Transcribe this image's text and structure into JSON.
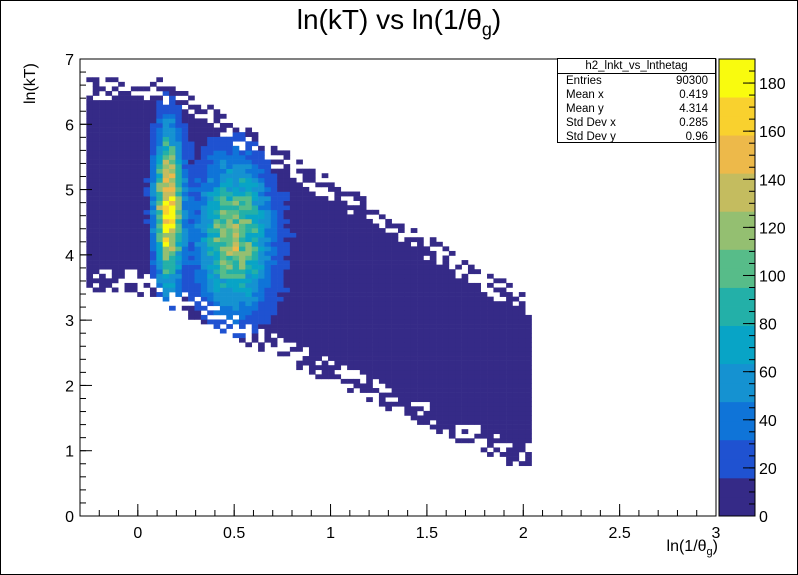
{
  "chart_data": {
    "type": "heatmap",
    "title": "ln(kT) vs ln(1/θ",
    "title_sub": "g",
    "title_end": ")",
    "xlabel": "ln(1/θ",
    "xlabel_sub": "g",
    "xlabel_end": ")",
    "ylabel": "ln(kT)",
    "xlim": [
      -0.3,
      3.0
    ],
    "ylim": [
      0,
      7
    ],
    "x_ticks": [
      0,
      0.5,
      1,
      1.5,
      2,
      2.5,
      3
    ],
    "x_tick_labels": [
      "0",
      "0.5",
      "1",
      "1.5",
      "2",
      "2.5",
      "3"
    ],
    "y_ticks": [
      0,
      1,
      2,
      3,
      4,
      5,
      6,
      7
    ],
    "y_tick_labels": [
      "0",
      "1",
      "2",
      "3",
      "4",
      "5",
      "6",
      "7"
    ],
    "z_range": [
      0,
      190
    ],
    "z_ticks": [
      0,
      20,
      40,
      60,
      80,
      100,
      120,
      140,
      160,
      180
    ],
    "z_tick_labels": [
      "0",
      "20",
      "40",
      "60",
      "80",
      "100",
      "120",
      "140",
      "160",
      "180"
    ],
    "colormap": [
      "#352a87",
      "#1f52d1",
      "#0f74d8",
      "#1592d1",
      "#08a4c6",
      "#23b0a8",
      "#57bc89",
      "#94bf71",
      "#c4bc5f",
      "#edb94a",
      "#f9d12e",
      "#f9fb0e"
    ],
    "bins": {
      "nx": 100,
      "ny": 100
    },
    "density_model": {
      "description_free": true,
      "lobes": [
        {
          "x": 0.16,
          "y": 4.7,
          "sx": 0.045,
          "sy": 0.75,
          "amplitude": 180
        },
        {
          "x": 0.5,
          "y": 4.3,
          "sx": 0.12,
          "sy": 0.75,
          "amplitude": 115
        }
      ]
    },
    "legend_position": "top-right"
  },
  "stats": {
    "name": "h2_lnkt_vs_lnthetag",
    "rows": [
      {
        "label": "Entries",
        "value": "90300"
      },
      {
        "label": "Mean x",
        "value": "0.419"
      },
      {
        "label": "Mean y",
        "value": "4.314"
      },
      {
        "label": "Std Dev x",
        "value": "0.285"
      },
      {
        "label": "Std Dev y",
        "value": "0.96"
      }
    ]
  }
}
